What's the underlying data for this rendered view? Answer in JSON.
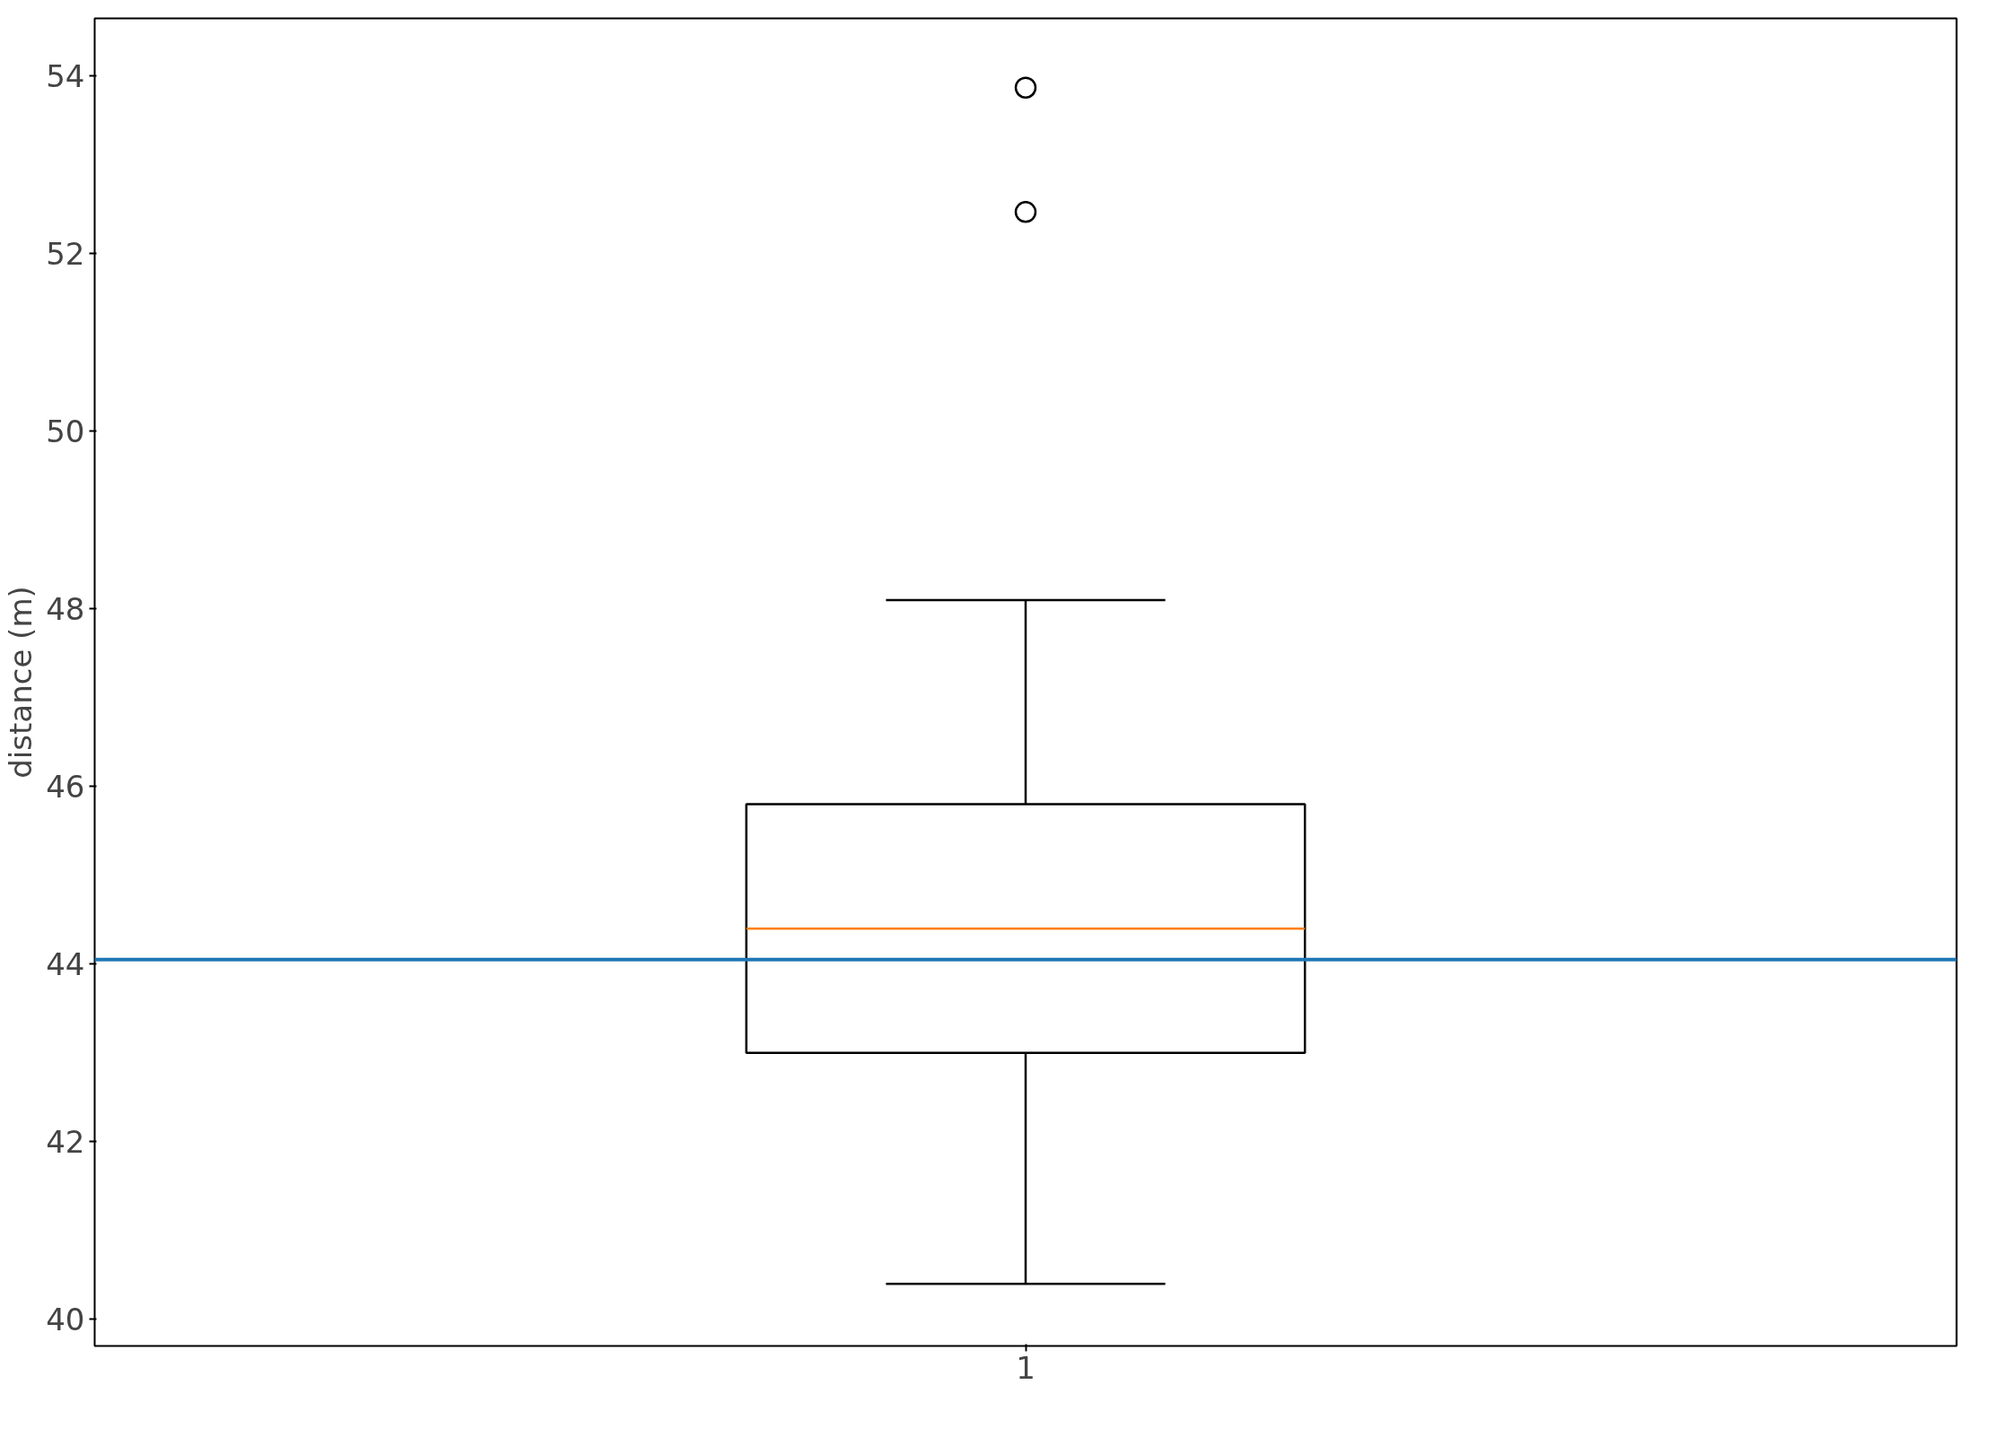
{
  "chart_data": {
    "type": "box",
    "ylabel": "distance (m)",
    "categories": [
      "1"
    ],
    "boxes": [
      {
        "low": 40.4,
        "q1": 43.0,
        "median": 44.4,
        "q3": 45.8,
        "high": 48.1,
        "outliers": [
          53.87,
          52.47
        ]
      }
    ],
    "ylim": [
      39.7,
      54.65
    ],
    "yticks": [
      40,
      42,
      44,
      46,
      48,
      50,
      52,
      54
    ],
    "grid": false,
    "ref_lines": [
      {
        "axis": "y",
        "value": 44.05,
        "color": "#1f77b4"
      }
    ]
  }
}
